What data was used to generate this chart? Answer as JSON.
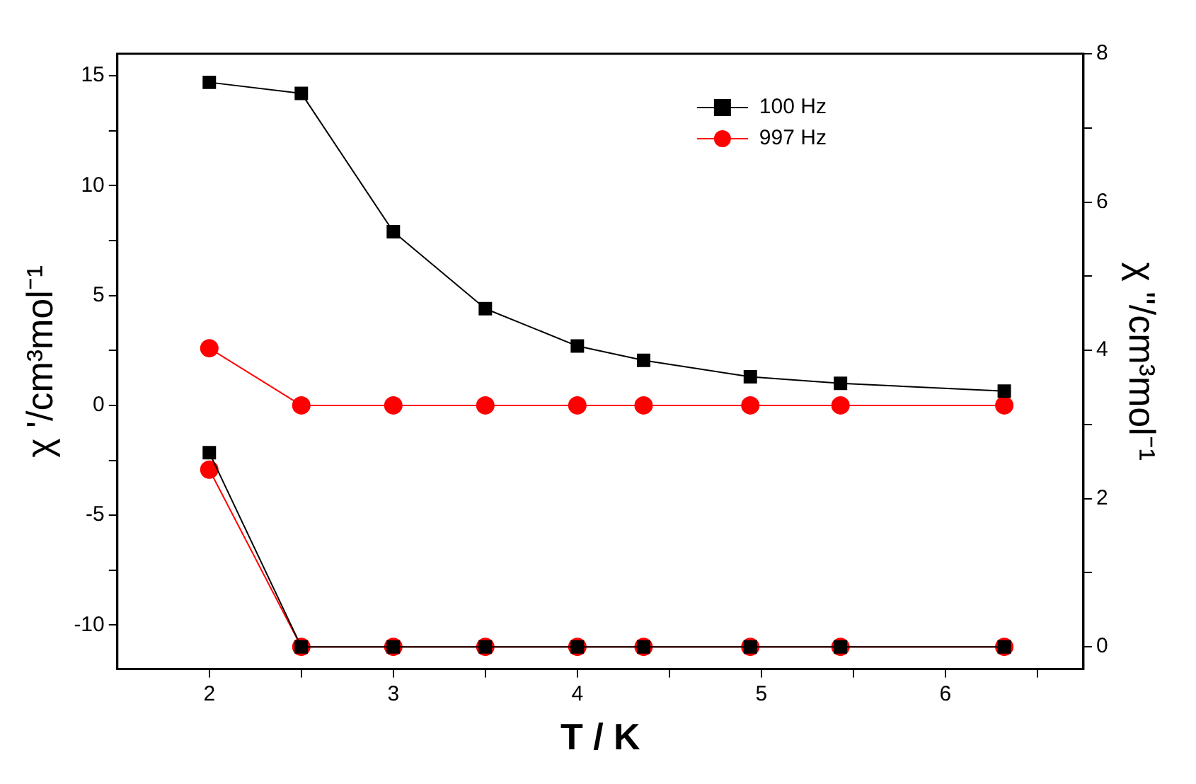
{
  "chart_data": {
    "type": "line",
    "xlabel": "T / K",
    "ylabel": "χ '/cm³mol⁻¹",
    "y2label": "χ \"/cm³mol⁻¹",
    "x": [
      2,
      2.5,
      3,
      3.5,
      4,
      4.36,
      4.94,
      5.43,
      6.32
    ],
    "series": [
      {
        "name": "100 Hz",
        "color": "#000000",
        "marker": "square",
        "values": [
          14.7,
          14.2,
          7.9,
          4.4,
          2.7,
          2.05,
          1.3,
          1.0,
          0.65
        ]
      },
      {
        "name": "997 Hz",
        "color": "#ff0000",
        "marker": "circle",
        "values": [
          2.6,
          0,
          0,
          0,
          0,
          0,
          0,
          0,
          0
        ]
      },
      {
        "color": "#000000",
        "marker": "square",
        "axis": "y2",
        "values": [
          2.62,
          0,
          0,
          0,
          0,
          0,
          0,
          0,
          0
        ]
      },
      {
        "color": "#ff0000",
        "marker": "circle",
        "axis": "y2",
        "values": [
          2.39,
          0,
          0,
          0,
          0,
          0,
          0,
          0,
          0
        ]
      }
    ],
    "xlim": [
      1.5,
      6.75
    ],
    "xticks": [
      2,
      {
        "value": 2.5,
        "label": null
      },
      3,
      {
        "value": 3.5,
        "label": null
      },
      4,
      {
        "value": 4.5,
        "label": null
      },
      5,
      {
        "value": 5.5,
        "label": null
      },
      6,
      {
        "value": 6.5,
        "label": null
      }
    ],
    "ylim": [
      -12,
      16
    ],
    "yticks": [
      -10,
      {
        "value": -7.5,
        "label": null
      },
      -5,
      {
        "value": -2.5,
        "label": null
      },
      0,
      {
        "value": 2.5,
        "label": null
      },
      5,
      {
        "value": 7.5,
        "label": null
      },
      10,
      {
        "value": 12.5,
        "label": null
      },
      15
    ],
    "y2lim": [
      -0.3,
      8
    ],
    "y2ticks": [
      0,
      {
        "value": 1,
        "label": null
      },
      2,
      {
        "value": 3,
        "label": null
      },
      4,
      {
        "value": 5,
        "label": null
      },
      6,
      {
        "value": 7,
        "label": null
      },
      8
    ],
    "grid": false,
    "legend": "top right",
    "line_style": "solid"
  }
}
